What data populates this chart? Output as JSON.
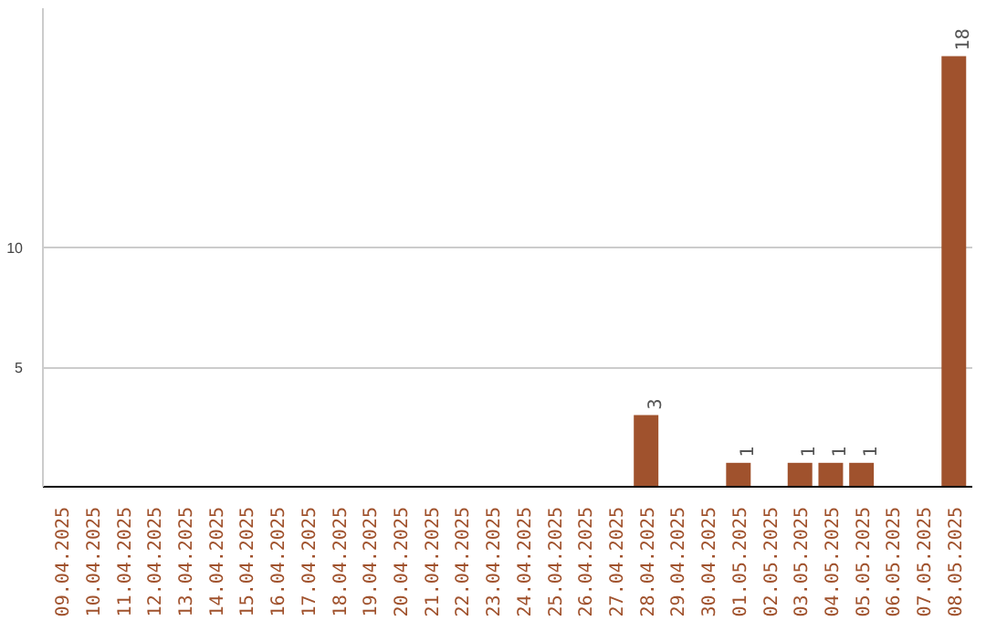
{
  "chart_data": {
    "type": "bar",
    "categories": [
      "09.04.2025",
      "10.04.2025",
      "11.04.2025",
      "12.04.2025",
      "13.04.2025",
      "14.04.2025",
      "15.04.2025",
      "16.04.2025",
      "17.04.2025",
      "18.04.2025",
      "19.04.2025",
      "20.04.2025",
      "21.04.2025",
      "22.04.2025",
      "23.04.2025",
      "24.04.2025",
      "25.04.2025",
      "26.04.2025",
      "27.04.2025",
      "28.04.2025",
      "29.04.2025",
      "30.04.2025",
      "01.05.2025",
      "02.05.2025",
      "03.05.2025",
      "04.05.2025",
      "05.05.2025",
      "06.05.2025",
      "07.05.2025",
      "08.05.2025"
    ],
    "values": [
      0,
      0,
      0,
      0,
      0,
      0,
      0,
      0,
      0,
      0,
      0,
      0,
      0,
      0,
      0,
      0,
      0,
      0,
      0,
      3,
      0,
      0,
      1,
      0,
      1,
      1,
      1,
      0,
      0,
      18
    ],
    "value_labels": [
      null,
      null,
      null,
      null,
      null,
      null,
      null,
      null,
      null,
      null,
      null,
      null,
      null,
      null,
      null,
      null,
      null,
      null,
      null,
      "3",
      null,
      null,
      "1",
      null,
      "1",
      "1",
      "1",
      null,
      null,
      "18"
    ],
    "color": "#a0522d",
    "ylim": [
      0,
      20
    ],
    "yticks": [
      5,
      10
    ],
    "grid": "y"
  }
}
